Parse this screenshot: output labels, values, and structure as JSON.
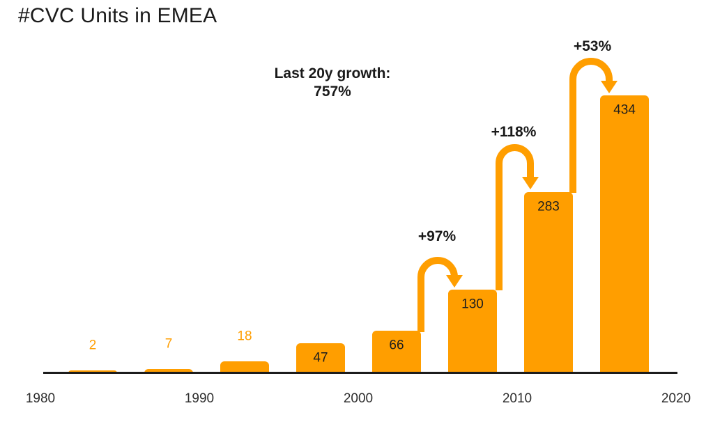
{
  "title": "#CVC Units in EMEA",
  "chart_data": {
    "type": "bar",
    "title": "#CVC Units in EMEA",
    "values": [
      2,
      7,
      18,
      47,
      66,
      130,
      283,
      434
    ],
    "bar_labels": [
      "2",
      "7",
      "18",
      "47",
      "66",
      "130",
      "283",
      "434"
    ],
    "label_positions": [
      "above",
      "above",
      "above",
      "inside",
      "inside",
      "inside",
      "inside",
      "inside"
    ],
    "x_axis": {
      "ticks": [
        "1980",
        "1990",
        "2000",
        "2010",
        "2020"
      ],
      "range": [
        1980,
        2020
      ]
    },
    "grid": false,
    "legend": "none",
    "annotations": {
      "note": {
        "line1": "Last 20y growth:",
        "line2": "757%"
      },
      "growth_arrows": [
        {
          "label": "+97%",
          "from_value": 66,
          "to_value": 130
        },
        {
          "label": "+118%",
          "from_value": 130,
          "to_value": 283
        },
        {
          "label": "+53%",
          "from_value": 283,
          "to_value": 434
        }
      ]
    },
    "colors": {
      "bar": "#FF9E00",
      "arrow": "#FF9E00",
      "label_above": "#FF9E00",
      "label_inside": "#1e1e1e",
      "axis": "#1c1c1c",
      "text": "#1a1a1a"
    }
  }
}
